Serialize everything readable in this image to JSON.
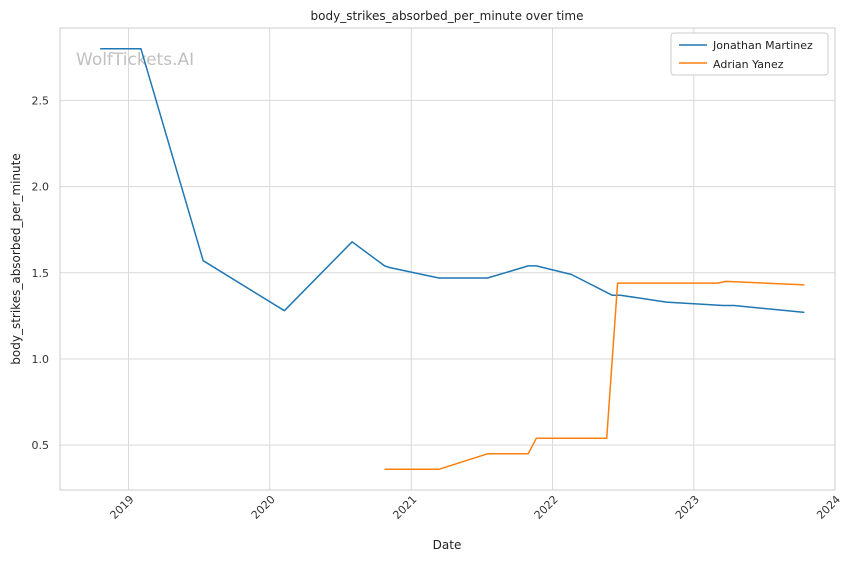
{
  "watermark": "WolfTickets.AI",
  "chart_data": {
    "type": "line",
    "title": "body_strikes_absorbed_per_minute over time",
    "xlabel": "Date",
    "ylabel": "body_strikes_absorbed_per_minute",
    "x_type": "date",
    "xlim": [
      "2018-07-08",
      "2024-01-01"
    ],
    "ylim": [
      0.24,
      2.92
    ],
    "x_ticks": [
      "2019-01-01",
      "2020-01-01",
      "2021-01-01",
      "2022-01-01",
      "2023-01-01",
      "2024-01-01"
    ],
    "x_tick_labels": [
      "2019",
      "2020",
      "2021",
      "2022",
      "2023",
      "2024"
    ],
    "y_ticks": [
      0.5,
      1.0,
      1.5,
      2.0,
      2.5
    ],
    "y_tick_labels": [
      "0.5",
      "1.0",
      "1.5",
      "2.0",
      "2.5"
    ],
    "grid": true,
    "legend_position": "top-right",
    "series": [
      {
        "name": "Jonathan Martinez",
        "color": "#1f77b4",
        "x": [
          "2018-10-20",
          "2019-02-02",
          "2019-07-13",
          "2020-02-08",
          "2020-08-01",
          "2020-10-24",
          "2020-11-07",
          "2021-03-13",
          "2021-07-17",
          "2021-10-30",
          "2021-11-20",
          "2022-02-19",
          "2022-06-04",
          "2022-06-25",
          "2022-10-22",
          "2023-03-18",
          "2023-04-15",
          "2023-10-14"
        ],
        "y": [
          2.8,
          2.8,
          1.57,
          1.28,
          1.68,
          1.54,
          1.53,
          1.47,
          1.47,
          1.54,
          1.54,
          1.49,
          1.37,
          1.37,
          1.33,
          1.31,
          1.31,
          1.27
        ]
      },
      {
        "name": "Adrian Yanez",
        "color": "#ff7f0e",
        "x": [
          "2020-10-24",
          "2021-03-13",
          "2021-07-17",
          "2021-10-30",
          "2021-11-20",
          "2022-05-21",
          "2022-06-18",
          "2023-03-04",
          "2023-03-25",
          "2023-10-14"
        ],
        "y": [
          0.36,
          0.36,
          0.45,
          0.45,
          0.54,
          0.54,
          1.44,
          1.44,
          1.45,
          1.43
        ]
      }
    ]
  }
}
